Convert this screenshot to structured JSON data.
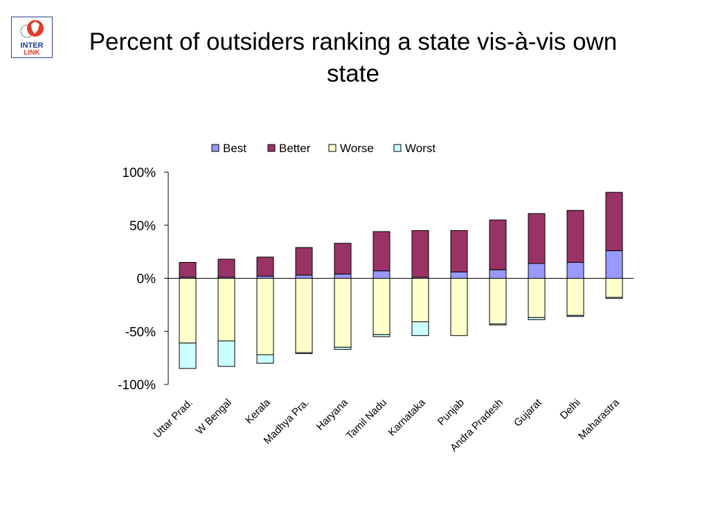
{
  "slide": {
    "title": "Percent of outsiders ranking a state vis-à-vis own state",
    "logo_text_top": "INTER",
    "logo_text_bottom": "LINK"
  },
  "chart_data": {
    "type": "bar",
    "stacked": true,
    "title": "",
    "xlabel": "",
    "ylabel": "",
    "ylim": [
      -100,
      100
    ],
    "yticks": [
      100,
      50,
      0,
      -50,
      -100
    ],
    "ytick_labels": [
      "100%",
      "50%",
      "0%",
      "-50%",
      "-100%"
    ],
    "legend_position": "top",
    "categories": [
      "Uttar Prad.",
      "W Bengal",
      "Kerala",
      "Madhya Pra.",
      "Haryana",
      "Tamil Nadu",
      "Karnataka",
      "Punjab",
      "Andra Pradesh",
      "Gujarat",
      "Delhi",
      "Maharastra"
    ],
    "series": [
      {
        "name": "Best",
        "color": "#9999ff",
        "values": [
          1,
          1,
          2,
          3,
          4,
          7,
          1,
          6,
          8,
          14,
          15,
          26
        ]
      },
      {
        "name": "Better",
        "color": "#993366",
        "values": [
          14,
          17,
          18,
          26,
          29,
          37,
          44,
          39,
          47,
          47,
          49,
          55
        ]
      },
      {
        "name": "Worse",
        "color": "#ffffcc",
        "values": [
          -61,
          -59,
          -72,
          -70,
          -65,
          -53,
          -41,
          -54,
          -43,
          -37,
          -35,
          -18
        ]
      },
      {
        "name": "Worst",
        "color": "#ccffff",
        "values": [
          -24,
          -24,
          -8,
          -1,
          -2,
          -2,
          -13,
          0,
          -1,
          -2,
          -1,
          -1
        ]
      }
    ]
  }
}
